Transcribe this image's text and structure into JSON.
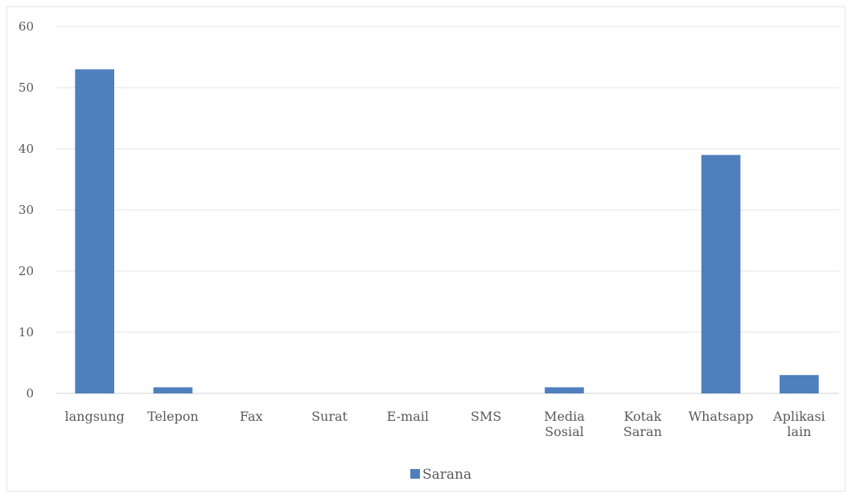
{
  "chart_data": {
    "type": "bar",
    "categories": [
      [
        "langsung"
      ],
      [
        "Telepon"
      ],
      [
        "Fax"
      ],
      [
        "Surat"
      ],
      [
        "E-mail"
      ],
      [
        "SMS"
      ],
      [
        "Media",
        "Sosial"
      ],
      [
        "Kotak",
        "Saran"
      ],
      [
        "Whatsapp"
      ],
      [
        "Aplikasi",
        "lain"
      ]
    ],
    "series": [
      {
        "name": "Sarana",
        "values": [
          53,
          1,
          0,
          0,
          0,
          0,
          1,
          0,
          39,
          3
        ],
        "color": "#4F7FBD"
      }
    ],
    "ylim": [
      0,
      60
    ],
    "yticks": [
      0,
      10,
      20,
      30,
      40,
      50,
      60
    ],
    "grid": true,
    "legend_position": "bottom"
  }
}
